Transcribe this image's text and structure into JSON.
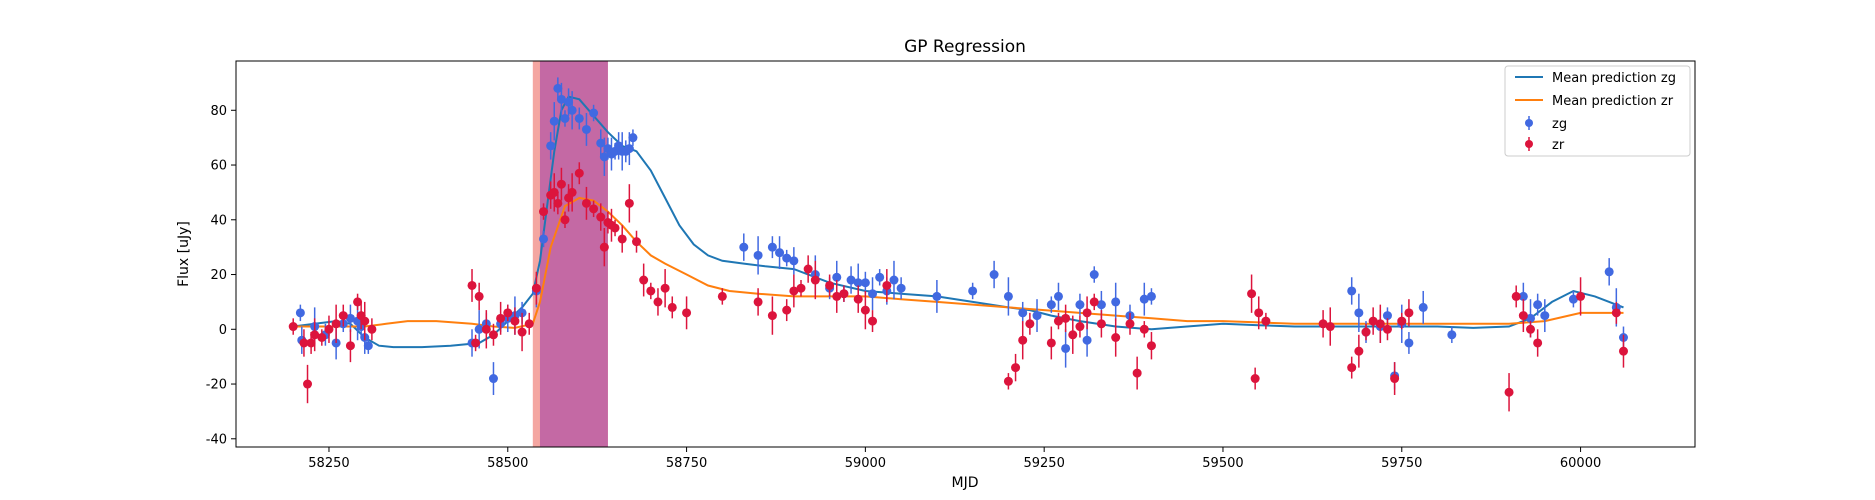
{
  "chart_data": {
    "type": "scatter",
    "title": "GP Regression",
    "xlabel": "MJD",
    "ylabel": "Flux [uJy]",
    "xlim": [
      58120,
      60160
    ],
    "ylim": [
      -43,
      98
    ],
    "xticks": [
      58250,
      58500,
      58750,
      59000,
      59250,
      59500,
      59750,
      60000
    ],
    "yticks": [
      -40,
      -20,
      0,
      20,
      40,
      60,
      80
    ],
    "grid": false,
    "legend_position": "top-right",
    "shaded_regions": [
      {
        "x0": 58535,
        "x1": 58640,
        "color": "#f4a6a1"
      },
      {
        "x0": 58545,
        "x1": 58640,
        "color": "#c469a4"
      }
    ],
    "lines": [
      {
        "name": "Mean prediction zg",
        "color": "#1f77b4",
        "x": [
          58200,
          58230,
          58260,
          58280,
          58300,
          58320,
          58340,
          58380,
          58420,
          58460,
          58480,
          58500,
          58520,
          58535,
          58545,
          58555,
          58565,
          58575,
          58585,
          58600,
          58620,
          58640,
          58660,
          58680,
          58700,
          58720,
          58740,
          58760,
          58780,
          58800,
          58830,
          58860,
          58900,
          58950,
          59000,
          59050,
          59100,
          59150,
          59200,
          59230,
          59260,
          59300,
          59350,
          59400,
          59450,
          59500,
          59550,
          59600,
          59650,
          59700,
          59750,
          59800,
          59850,
          59900,
          59930,
          59960,
          59990,
          60020,
          60060
        ],
        "y": [
          1,
          2,
          3,
          2,
          -3,
          -6,
          -6.5,
          -6.5,
          -6,
          -5,
          -2,
          3,
          8,
          13,
          25,
          45,
          65,
          80,
          85,
          84,
          78,
          72,
          67,
          65,
          58,
          48,
          38,
          31,
          27,
          25,
          24,
          23,
          22,
          17,
          14,
          13,
          12,
          10,
          8,
          7,
          5,
          3,
          1,
          0,
          1,
          2,
          1.5,
          1,
          1,
          1,
          1,
          1,
          0.5,
          1,
          4,
          10,
          14,
          12,
          8
        ]
      },
      {
        "name": "Mean prediction zr",
        "color": "#ff7f0e",
        "x": [
          58200,
          58250,
          58300,
          58330,
          58360,
          58400,
          58450,
          58480,
          58510,
          58535,
          58545,
          58560,
          58580,
          58600,
          58620,
          58640,
          58660,
          58680,
          58700,
          58720,
          58750,
          58780,
          58810,
          58850,
          58900,
          58950,
          59000,
          59050,
          59100,
          59150,
          59200,
          59250,
          59300,
          59350,
          59400,
          59450,
          59500,
          59550,
          59600,
          59650,
          59700,
          59750,
          59800,
          59850,
          59900,
          59950,
          60000,
          60060
        ],
        "y": [
          1,
          1,
          1,
          2,
          3,
          3,
          2,
          1,
          0.5,
          2,
          10,
          30,
          45,
          48,
          47,
          43,
          38,
          32,
          27,
          24,
          20,
          16,
          14,
          13,
          12,
          12,
          12,
          11,
          10,
          9,
          8,
          7,
          6,
          5,
          4,
          3,
          3,
          2.5,
          2,
          2,
          2,
          2,
          2,
          2,
          2,
          3,
          6,
          6
        ]
      }
    ],
    "series": [
      {
        "name": "zg",
        "color": "#4169e1",
        "x": [
          58210,
          58212,
          58230,
          58245,
          58260,
          58270,
          58280,
          58290,
          58295,
          58300,
          58305,
          58450,
          58460,
          58470,
          58480,
          58490,
          58500,
          58510,
          58520,
          58540,
          58550,
          58560,
          58565,
          58570,
          58575,
          58580,
          58585,
          58590,
          58600,
          58610,
          58620,
          58630,
          58635,
          58640,
          58645,
          58650,
          58655,
          58660,
          58665,
          58670,
          58675,
          58830,
          58850,
          58870,
          58880,
          58890,
          58900,
          58930,
          58950,
          58960,
          58970,
          58980,
          58990,
          59000,
          59010,
          59020,
          59030,
          59040,
          59050,
          59100,
          59150,
          59180,
          59200,
          59220,
          59240,
          59260,
          59270,
          59280,
          59300,
          59310,
          59320,
          59330,
          59350,
          59370,
          59390,
          59400,
          59680,
          59690,
          59700,
          59720,
          59730,
          59740,
          59750,
          59760,
          59780,
          59820,
          59920,
          59930,
          59940,
          59950,
          59990,
          60040,
          60050,
          60060
        ],
        "y": [
          6,
          -4,
          1,
          -2,
          -5,
          2,
          4,
          3,
          1,
          -3,
          -6,
          -5,
          0,
          2,
          -18,
          2,
          4,
          5,
          6,
          14,
          33,
          67,
          76,
          88,
          84,
          77,
          83,
          80,
          77,
          73,
          79,
          68,
          63,
          66,
          64,
          65,
          67,
          65,
          65,
          66,
          70,
          30,
          27,
          30,
          28,
          26,
          25,
          20,
          15,
          19,
          13,
          18,
          17,
          17,
          13,
          19,
          14,
          18,
          15,
          12,
          14,
          20,
          12,
          6,
          5,
          9,
          12,
          -7,
          9,
          -4,
          20,
          9,
          10,
          5,
          11,
          12,
          14,
          6,
          -1,
          1,
          5,
          -17,
          2,
          -5,
          8,
          -2,
          12,
          4,
          9,
          5,
          11,
          21,
          8,
          -3
        ]
      },
      {
        "name": "zr",
        "color": "#dc143c",
        "x": [
          58200,
          58215,
          58220,
          58225,
          58230,
          58240,
          58250,
          58260,
          58270,
          58280,
          58290,
          58295,
          58300,
          58310,
          58450,
          58455,
          58460,
          58470,
          58480,
          58490,
          58500,
          58510,
          58520,
          58530,
          58540,
          58550,
          58560,
          58565,
          58570,
          58575,
          58580,
          58585,
          58590,
          58600,
          58610,
          58620,
          58630,
          58635,
          58640,
          58645,
          58650,
          58660,
          58670,
          58680,
          58690,
          58700,
          58710,
          58720,
          58730,
          58750,
          58800,
          58850,
          58870,
          58890,
          58900,
          58910,
          58920,
          58930,
          58950,
          58960,
          58970,
          58990,
          59000,
          59010,
          59030,
          59200,
          59210,
          59220,
          59230,
          59260,
          59270,
          59280,
          59290,
          59300,
          59310,
          59320,
          59330,
          59350,
          59370,
          59380,
          59390,
          59400,
          59540,
          59545,
          59550,
          59560,
          59640,
          59650,
          59680,
          59690,
          59700,
          59710,
          59720,
          59730,
          59740,
          59750,
          59760,
          59900,
          59910,
          59920,
          59930,
          59940,
          60000,
          60050,
          60060
        ],
        "y": [
          1,
          -5,
          -20,
          -5,
          -2,
          -3,
          0,
          2,
          5,
          -6,
          10,
          5,
          3,
          0,
          16,
          -5,
          12,
          0,
          -2,
          4,
          6,
          3,
          -1,
          2,
          15,
          43,
          49,
          50,
          46,
          53,
          40,
          48,
          50,
          57,
          46,
          44,
          41,
          30,
          39,
          38,
          37,
          33,
          46,
          32,
          18,
          14,
          10,
          15,
          8,
          6,
          12,
          10,
          5,
          7,
          14,
          15,
          22,
          18,
          16,
          12,
          13,
          11,
          7,
          3,
          16,
          -19,
          -14,
          -4,
          2,
          -5,
          3,
          4,
          -2,
          1,
          6,
          10,
          2,
          -3,
          2,
          -16,
          0,
          -6,
          13,
          -18,
          6,
          3,
          2,
          1,
          -14,
          -8,
          -1,
          3,
          2,
          0,
          -18,
          3,
          6,
          -23,
          12,
          5,
          0,
          -5,
          12,
          6,
          -8
        ]
      }
    ]
  }
}
